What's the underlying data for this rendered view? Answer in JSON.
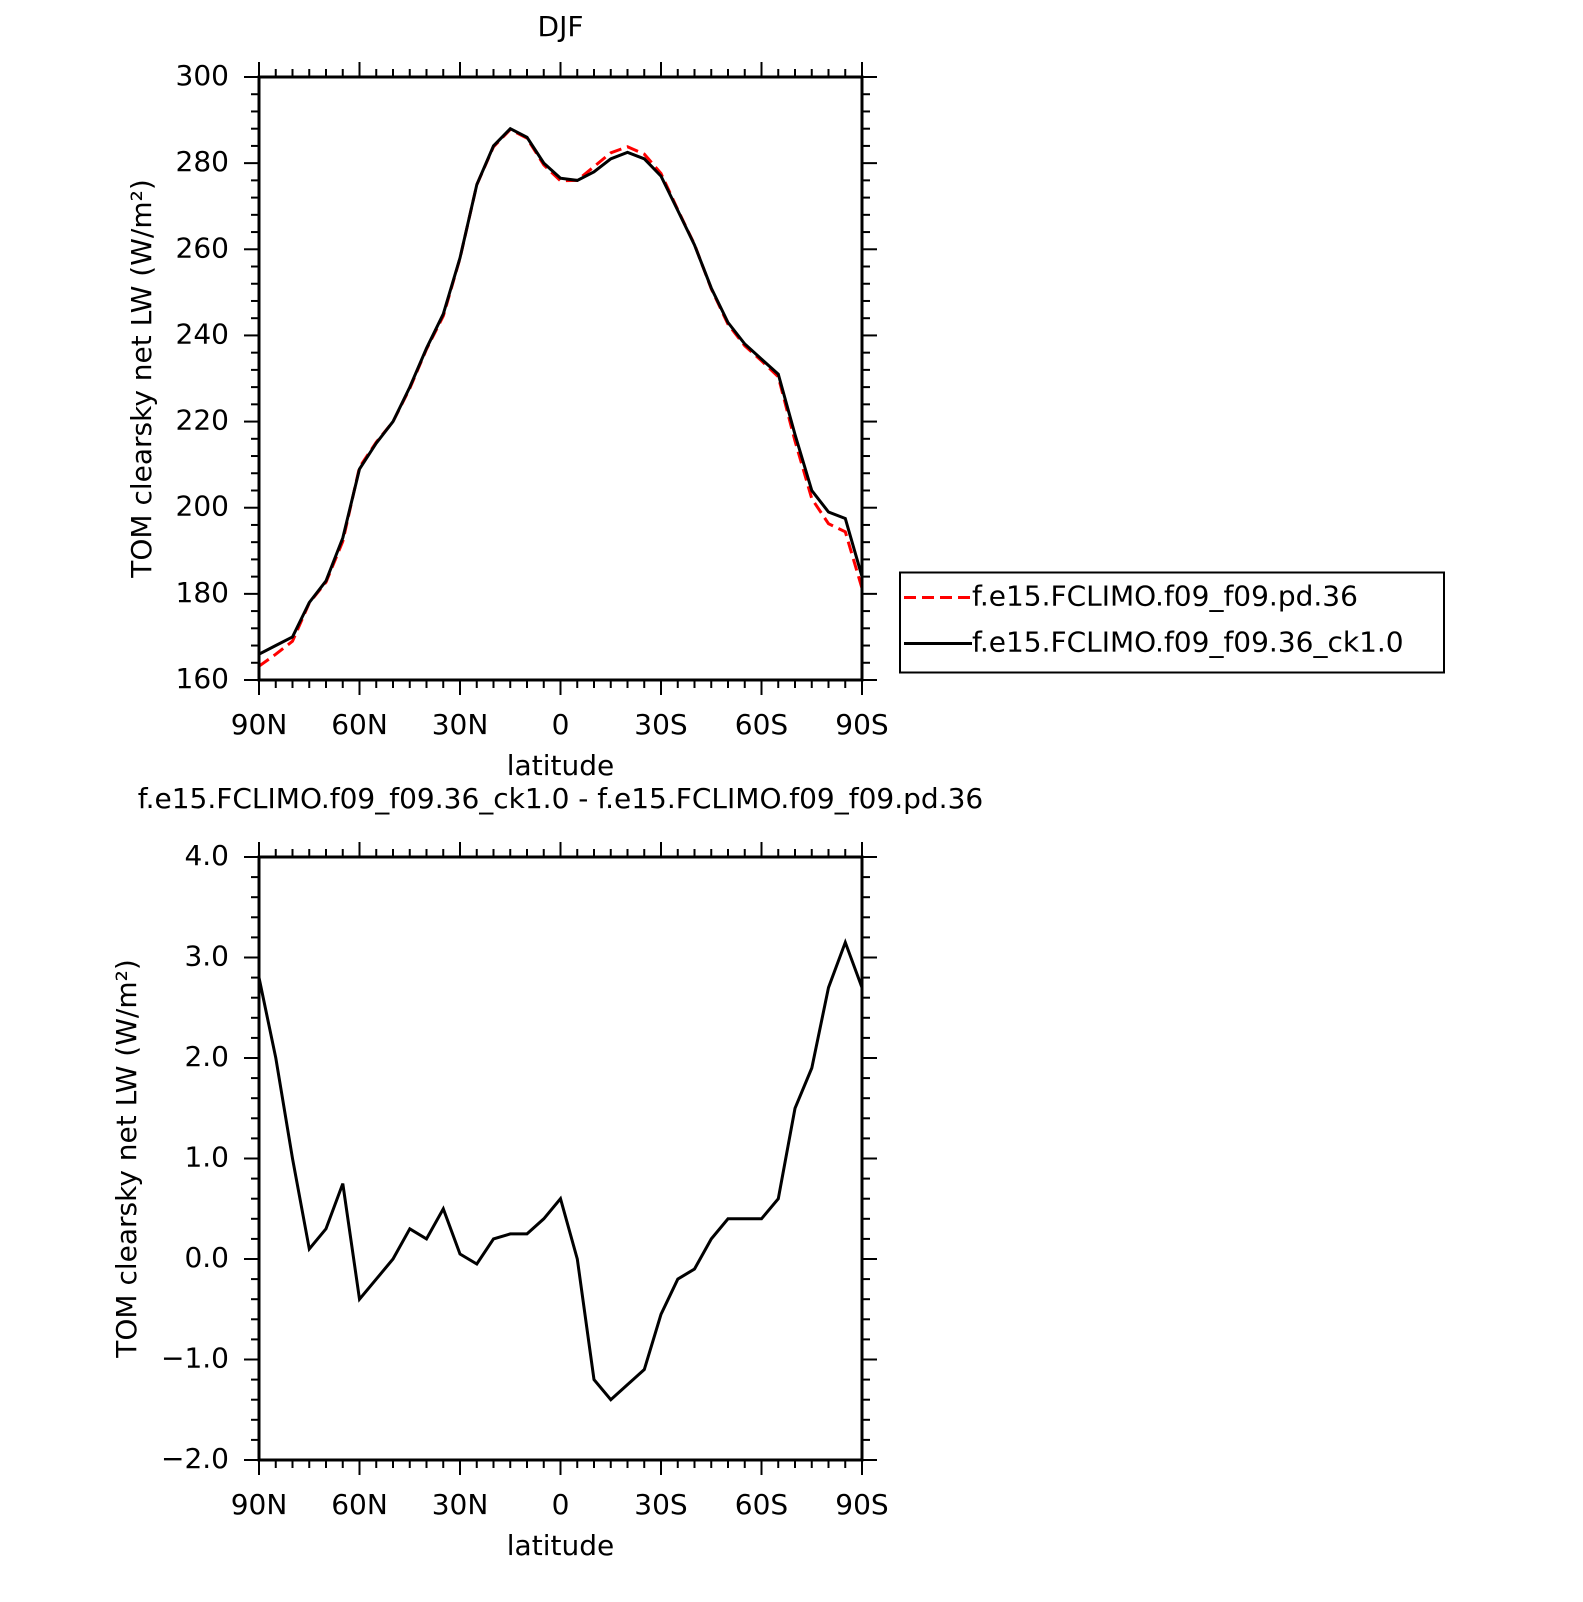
{
  "chart_data": [
    {
      "type": "line",
      "title": "DJF",
      "xlabel": "latitude",
      "ylabel": "TOM clearsky net LW (W/m²)",
      "x": [
        90,
        85,
        80,
        75,
        70,
        65,
        60,
        55,
        50,
        45,
        40,
        35,
        30,
        25,
        20,
        15,
        10,
        5,
        0,
        -5,
        -10,
        -15,
        -20,
        -25,
        -30,
        -35,
        -40,
        -45,
        -50,
        -55,
        -60,
        -65,
        -70,
        -75,
        -80,
        -85,
        -90
      ],
      "xlim": [
        90,
        -90
      ],
      "xticks": [
        {
          "value": 90,
          "label": "90N"
        },
        {
          "value": 60,
          "label": "60N"
        },
        {
          "value": 30,
          "label": "30N"
        },
        0,
        {
          "value": -30,
          "label": "30S"
        },
        {
          "value": -60,
          "label": "60S"
        },
        {
          "value": -90,
          "label": "90S"
        }
      ],
      "ylim": [
        160,
        300
      ],
      "yticks": [
        160,
        180,
        200,
        220,
        240,
        260,
        280,
        300
      ],
      "legend": "right",
      "series": [
        {
          "name": "f.e15.FCLIMO.f09_f09.pd.36",
          "color": "#ff0000",
          "style": "dashed",
          "values": [
            163.2,
            166,
            169,
            177.9,
            182.7,
            192.2,
            209.4,
            215.2,
            220,
            227.7,
            236.8,
            244.5,
            257.9,
            275,
            283.8,
            287.8,
            285.8,
            279.6,
            275.9,
            276,
            279.2,
            282.4,
            283.8,
            282.1,
            277.6,
            269.2,
            261.1,
            250.8,
            242.6,
            237.6,
            234.1,
            230.4,
            215.5,
            202.1,
            196.3,
            194.4,
            181.3
          ]
        },
        {
          "name": "f.e15.FCLIMO.f09_f09.36_ck1.0",
          "color": "#000000",
          "style": "solid",
          "values": [
            166,
            168,
            170,
            178,
            183,
            193,
            209,
            215,
            220,
            228,
            237,
            245,
            258,
            275,
            284,
            288,
            286,
            280,
            276.5,
            276,
            278,
            281,
            282.5,
            281,
            277,
            269,
            261,
            251,
            243,
            238,
            234.5,
            231,
            217,
            204,
            199,
            197.5,
            184
          ]
        }
      ]
    },
    {
      "type": "line",
      "title": "f.e15.FCLIMO.f09_f09.36_ck1.0 - f.e15.FCLIMO.f09_f09.pd.36",
      "xlabel": "latitude",
      "ylabel": "TOM clearsky net LW (W/m²)",
      "x": [
        90,
        85,
        80,
        75,
        70,
        65,
        60,
        55,
        50,
        45,
        40,
        35,
        30,
        25,
        20,
        15,
        10,
        5,
        0,
        -5,
        -10,
        -15,
        -20,
        -25,
        -30,
        -35,
        -40,
        -45,
        -50,
        -55,
        -60,
        -65,
        -70,
        -75,
        -80,
        -85,
        -90
      ],
      "xlim": [
        90,
        -90
      ],
      "xticks": [
        {
          "value": 90,
          "label": "90N"
        },
        {
          "value": 60,
          "label": "60N"
        },
        {
          "value": 30,
          "label": "30N"
        },
        0,
        {
          "value": -30,
          "label": "30S"
        },
        {
          "value": -60,
          "label": "60S"
        },
        {
          "value": -90,
          "label": "90S"
        }
      ],
      "ylim": [
        -2,
        4
      ],
      "yticks": [
        {
          "value": -2,
          "label": "−2.0"
        },
        {
          "value": -1,
          "label": "−1.0"
        },
        {
          "value": 0,
          "label": "0.0"
        },
        {
          "value": 1,
          "label": "1.0"
        },
        {
          "value": 2,
          "label": "2.0"
        },
        {
          "value": 3,
          "label": "3.0"
        },
        {
          "value": 4,
          "label": "4.0"
        }
      ],
      "series": [
        {
          "color": "#000000",
          "style": "solid",
          "values": [
            2.8,
            2.0,
            1.0,
            0.1,
            0.3,
            0.75,
            -0.4,
            -0.2,
            0.0,
            0.3,
            0.2,
            0.5,
            0.05,
            -0.05,
            0.2,
            0.25,
            0.25,
            0.4,
            0.6,
            0.0,
            -1.2,
            -1.4,
            -1.25,
            -1.1,
            -0.55,
            -0.2,
            -0.1,
            0.2,
            0.4,
            0.4,
            0.4,
            0.6,
            1.5,
            1.9,
            2.7,
            3.15,
            2.7
          ]
        }
      ]
    }
  ]
}
